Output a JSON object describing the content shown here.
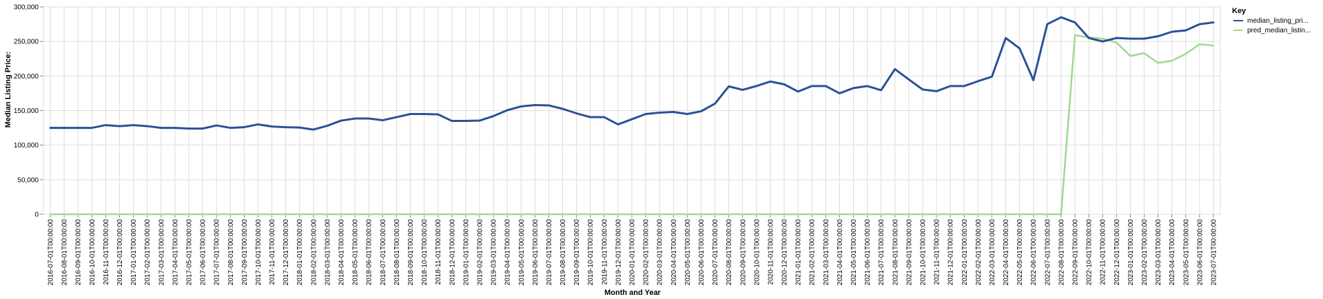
{
  "chart_data": {
    "type": "line",
    "xlabel": "Month and Year",
    "ylabel": "Median Listing Price:",
    "ylim": [
      0,
      300000
    ],
    "y_ticks": [
      "0",
      "50,000",
      "100,000",
      "150,000",
      "200,000",
      "250,000",
      "300,000"
    ],
    "y_tick_values": [
      0,
      50000,
      100000,
      150000,
      200000,
      250000,
      300000
    ],
    "grid": true,
    "legend": {
      "title": "Key",
      "position": "right"
    },
    "categories": [
      "2016-07-01T00:00:00",
      "2016-08-01T00:00:00",
      "2016-09-01T00:00:00",
      "2016-10-01T00:00:00",
      "2016-11-01T00:00:00",
      "2016-12-01T00:00:00",
      "2017-01-01T00:00:00",
      "2017-02-01T00:00:00",
      "2017-03-01T00:00:00",
      "2017-04-01T00:00:00",
      "2017-05-01T00:00:00",
      "2017-06-01T00:00:00",
      "2017-07-01T00:00:00",
      "2017-08-01T00:00:00",
      "2017-09-01T00:00:00",
      "2017-10-01T00:00:00",
      "2017-11-01T00:00:00",
      "2017-12-01T00:00:00",
      "2018-01-01T00:00:00",
      "2018-02-01T00:00:00",
      "2018-03-01T00:00:00",
      "2018-04-01T00:00:00",
      "2018-05-01T00:00:00",
      "2018-06-01T00:00:00",
      "2018-07-01T00:00:00",
      "2018-08-01T00:00:00",
      "2018-09-01T00:00:00",
      "2018-10-01T00:00:00",
      "2018-11-01T00:00:00",
      "2018-12-01T00:00:00",
      "2019-01-01T00:00:00",
      "2019-02-01T00:00:00",
      "2019-03-01T00:00:00",
      "2019-04-01T00:00:00",
      "2019-05-01T00:00:00",
      "2019-06-01T00:00:00",
      "2019-07-01T00:00:00",
      "2019-08-01T00:00:00",
      "2019-09-01T00:00:00",
      "2019-10-01T00:00:00",
      "2019-11-01T00:00:00",
      "2019-12-01T00:00:00",
      "2020-01-01T00:00:00",
      "2020-02-01T00:00:00",
      "2020-03-01T00:00:00",
      "2020-04-01T00:00:00",
      "2020-05-01T00:00:00",
      "2020-06-01T00:00:00",
      "2020-07-01T00:00:00",
      "2020-08-01T00:00:00",
      "2020-09-01T00:00:00",
      "2020-10-01T00:00:00",
      "2020-11-01T00:00:00",
      "2020-12-01T00:00:00",
      "2021-01-01T00:00:00",
      "2021-02-01T00:00:00",
      "2021-03-01T00:00:00",
      "2021-04-01T00:00:00",
      "2021-05-01T00:00:00",
      "2021-06-01T00:00:00",
      "2021-07-01T00:00:00",
      "2021-08-01T00:00:00",
      "2021-09-01T00:00:00",
      "2021-10-01T00:00:00",
      "2021-11-01T00:00:00",
      "2021-12-01T00:00:00",
      "2022-01-01T00:00:00",
      "2022-02-01T00:00:00",
      "2022-03-01T00:00:00",
      "2022-04-01T00:00:00",
      "2022-05-01T00:00:00",
      "2022-06-01T00:00:00",
      "2022-07-01T00:00:00",
      "2022-08-01T00:00:00",
      "2022-09-01T00:00:00",
      "2022-10-01T00:00:00",
      "2022-11-01T00:00:00",
      "2022-12-01T00:00:00",
      "2023-01-01T00:00:00",
      "2023-02-01T00:00:00",
      "2023-03-01T00:00:00",
      "2023-04-01T00:00:00",
      "2023-05-01T00:00:00",
      "2023-06-01T00:00:00",
      "2023-07-01T00:00:00"
    ],
    "series": [
      {
        "name": "median_listing_pri...",
        "color": "#2b5197",
        "values": [
          125000,
          125000,
          125000,
          125000,
          129000,
          127500,
          129000,
          127500,
          125000,
          125000,
          124000,
          124000,
          128500,
          125000,
          126000,
          130000,
          127000,
          126000,
          125500,
          122500,
          128000,
          135500,
          138500,
          138500,
          136000,
          140500,
          145000,
          145000,
          144500,
          135000,
          135000,
          135500,
          142000,
          150500,
          156000,
          158000,
          157500,
          152500,
          146000,
          140500,
          140500,
          130000,
          137500,
          145000,
          147000,
          148000,
          145000,
          149000,
          160000,
          185000,
          180000,
          185500,
          192000,
          188000,
          177500,
          185500,
          185500,
          175000,
          182500,
          185500,
          179500,
          210000,
          195000,
          180500,
          178000,
          185500,
          185500,
          192500,
          199000,
          255000,
          240000,
          194000,
          275000,
          285000,
          277500,
          255000,
          250000,
          255000,
          254000,
          254000,
          257500,
          264000,
          266000,
          275000,
          277500
        ]
      },
      {
        "name": "pred_median_listin...",
        "color": "#9ed991",
        "values": [
          0,
          0,
          0,
          0,
          0,
          0,
          0,
          0,
          0,
          0,
          0,
          0,
          0,
          0,
          0,
          0,
          0,
          0,
          0,
          0,
          0,
          0,
          0,
          0,
          0,
          0,
          0,
          0,
          0,
          0,
          0,
          0,
          0,
          0,
          0,
          0,
          0,
          0,
          0,
          0,
          0,
          0,
          0,
          0,
          0,
          0,
          0,
          0,
          0,
          0,
          0,
          0,
          0,
          0,
          0,
          0,
          0,
          0,
          0,
          0,
          0,
          0,
          0,
          0,
          0,
          0,
          0,
          0,
          0,
          0,
          0,
          0,
          0,
          0,
          259000,
          256000,
          254000,
          248500,
          229000,
          233000,
          219000,
          222000,
          232000,
          246000,
          244000
        ]
      }
    ]
  }
}
